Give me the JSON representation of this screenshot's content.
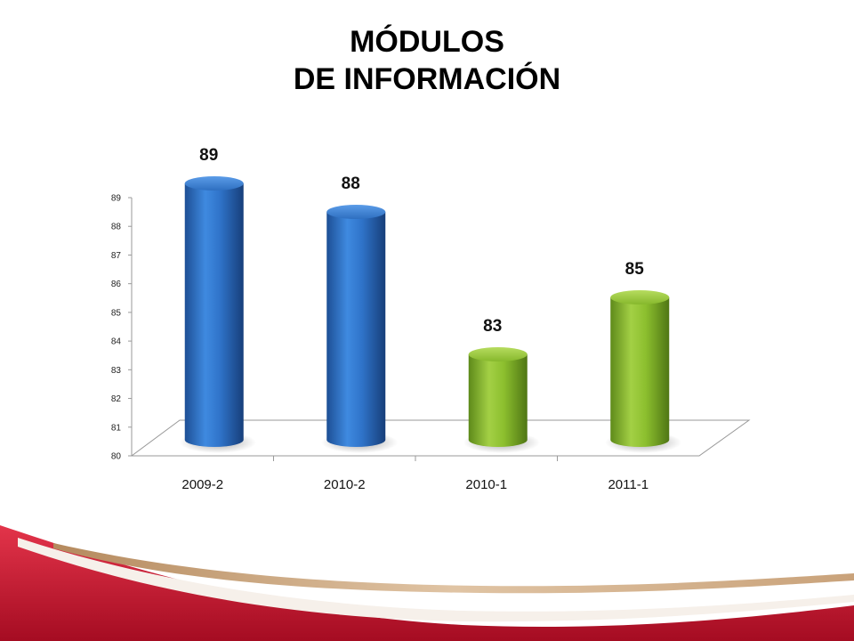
{
  "slide": {
    "title_line1": "MÓDULOS",
    "title_line2": "DE INFORMACIÓN"
  },
  "colors": {
    "blue_bar": "#2f73c9",
    "green_bar": "#8cbf2e",
    "footer_red": "#c8102e",
    "footer_tan": "#c9a27a"
  },
  "chart_data": {
    "type": "bar",
    "style": "3d-cylinder",
    "title": "",
    "categories": [
      "2009-2",
      "2010-2",
      "2010-1",
      "2011-1"
    ],
    "values": [
      89,
      88,
      83,
      85
    ],
    "data_labels": [
      "89",
      "88",
      "83",
      "85"
    ],
    "bar_colors": [
      "#2f73c9",
      "#2f73c9",
      "#8cbf2e",
      "#8cbf2e"
    ],
    "ylim": [
      80,
      89
    ],
    "yticks": [
      80,
      81,
      82,
      83,
      84,
      85,
      86,
      87,
      88,
      89
    ],
    "xlabel": "",
    "ylabel": "",
    "grid": false,
    "legend": "none"
  }
}
